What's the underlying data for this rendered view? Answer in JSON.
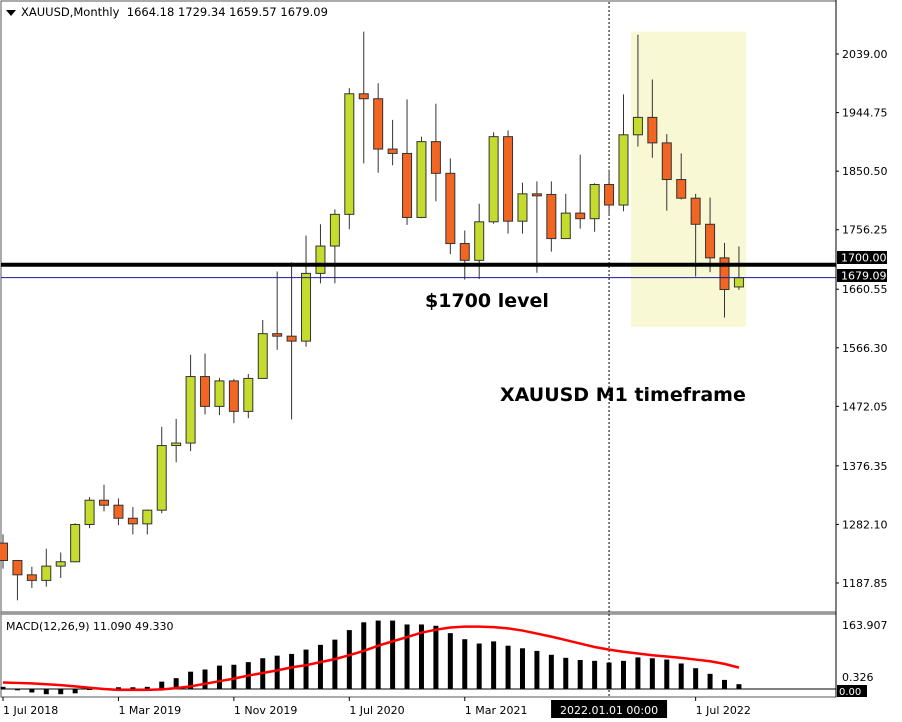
{
  "header": {
    "symbol_timeframe": "XAUUSD,Monthly",
    "ohlc": "1664.18 1729.34 1659.57 1679.09"
  },
  "annotations": {
    "level_text": "$1700 level",
    "timeframe_text": "XAUUSD M1 timeframe"
  },
  "colors": {
    "bull": "#c5dc2e",
    "bear": "#f26522",
    "level_line": "#000000",
    "bid_line": "#1a1aa6",
    "highlight": "#f8f8d4",
    "signal_line": "#ff0000",
    "histogram": "#000000"
  },
  "chart_data": [
    {
      "type": "candlestick",
      "title": "XAUUSD,Monthly",
      "x_start": "Jul 2018",
      "x_end": "Oct 2022",
      "ylim": [
        1130,
        2100
      ],
      "grid": false,
      "y_ticks": [
        "2039.00",
        "1944.75",
        "1850.50",
        "1756.25",
        "1660.55",
        "1566.30",
        "1472.05",
        "1376.35",
        "1282.10",
        "1187.85"
      ],
      "x_ticks": [
        "1 Jul 2018",
        "1 Mar 2019",
        "1 Nov 2019",
        "1 Jul 2020",
        "1 Mar 2021",
        "1 Jul 2022"
      ],
      "crosshair_label": "2022.01.01 00:00",
      "level_line": {
        "value": 1700.0,
        "label": "1700.00"
      },
      "bid_line": {
        "value": 1679.09,
        "label": "1679.09"
      },
      "highlight_range": {
        "from": "Mar 2022",
        "to": "Oct 2022",
        "low": 1600,
        "high": 2075
      },
      "ohlc": [
        [
          1252,
          1266,
          1211,
          1224
        ],
        [
          1224,
          1225,
          1160,
          1201
        ],
        [
          1201,
          1214,
          1180,
          1192
        ],
        [
          1192,
          1243,
          1182,
          1215
        ],
        [
          1215,
          1237,
          1196,
          1222
        ],
        [
          1222,
          1284,
          1221,
          1282
        ],
        [
          1282,
          1326,
          1276,
          1321
        ],
        [
          1321,
          1346,
          1303,
          1313
        ],
        [
          1313,
          1324,
          1281,
          1292
        ],
        [
          1292,
          1310,
          1266,
          1283
        ],
        [
          1283,
          1306,
          1266,
          1305
        ],
        [
          1305,
          1439,
          1300,
          1409
        ],
        [
          1409,
          1452,
          1382,
          1413
        ],
        [
          1413,
          1555,
          1400,
          1520
        ],
        [
          1520,
          1557,
          1459,
          1472
        ],
        [
          1472,
          1518,
          1458,
          1513
        ],
        [
          1513,
          1516,
          1445,
          1464
        ],
        [
          1464,
          1524,
          1453,
          1517
        ],
        [
          1517,
          1611,
          1517,
          1589
        ],
        [
          1589,
          1689,
          1563,
          1585
        ],
        [
          1585,
          1704,
          1451,
          1577
        ],
        [
          1577,
          1747,
          1568,
          1686
        ],
        [
          1686,
          1765,
          1670,
          1730
        ],
        [
          1730,
          1789,
          1670,
          1781
        ],
        [
          1781,
          1984,
          1757,
          1975
        ],
        [
          1975,
          2075,
          1863,
          1967
        ],
        [
          1967,
          1992,
          1848,
          1886
        ],
        [
          1886,
          1933,
          1860,
          1879
        ],
        [
          1879,
          1966,
          1764,
          1776
        ],
        [
          1776,
          1906,
          1775,
          1898
        ],
        [
          1898,
          1959,
          1802,
          1847
        ],
        [
          1847,
          1871,
          1717,
          1734
        ],
        [
          1734,
          1755,
          1676,
          1707
        ],
        [
          1707,
          1798,
          1677,
          1769
        ],
        [
          1769,
          1913,
          1766,
          1906
        ],
        [
          1906,
          1916,
          1750,
          1770
        ],
        [
          1770,
          1832,
          1750,
          1814
        ],
        [
          1814,
          1834,
          1687,
          1813
        ],
        [
          1813,
          1834,
          1721,
          1742
        ],
        [
          1742,
          1814,
          1746,
          1783
        ],
        [
          1783,
          1877,
          1758,
          1774
        ],
        [
          1774,
          1831,
          1753,
          1829
        ],
        [
          1829,
          1853,
          1780,
          1796
        ],
        [
          1796,
          1974,
          1786,
          1909
        ],
        [
          1909,
          2070,
          1890,
          1937
        ],
        [
          1937,
          1998,
          1872,
          1896
        ],
        [
          1896,
          1910,
          1787,
          1837
        ],
        [
          1837,
          1879,
          1805,
          1807
        ],
        [
          1807,
          1814,
          1681,
          1765
        ],
        [
          1765,
          1808,
          1688,
          1711
        ],
        [
          1711,
          1735,
          1615,
          1660
        ],
        [
          1664.18,
          1729.34,
          1659.57,
          1679.09
        ]
      ]
    },
    {
      "type": "bar+line",
      "title": "MACD(12,26,9) 11.090 49.330",
      "ylim": [
        -20,
        163.907
      ],
      "y_ticks": [
        "163.907"
      ],
      "zero_labels": [
        "0.00",
        "0.326"
      ],
      "series": [
        {
          "kind": "histogram",
          "values": [
            5,
            -3,
            -8,
            -12,
            -12,
            -10,
            -1,
            2,
            4,
            4,
            5,
            17,
            25,
            40,
            45,
            54,
            56,
            62,
            71,
            77,
            81,
            91,
            102,
            114,
            136,
            154,
            158,
            158,
            149,
            149,
            146,
            129,
            115,
            105,
            110,
            100,
            94,
            88,
            79,
            72,
            67,
            65,
            61,
            65,
            73,
            71,
            68,
            59,
            48,
            35,
            21,
            11.09
          ]
        },
        {
          "kind": "signal",
          "values": [
            15,
            14,
            13,
            11,
            9,
            6,
            3,
            0,
            -2,
            -2,
            -2,
            -1,
            2,
            6,
            12,
            18,
            24,
            31,
            37,
            43,
            50,
            55,
            62,
            69,
            78,
            88,
            100,
            110,
            120,
            130,
            137,
            142,
            144,
            144,
            143,
            140,
            135,
            128,
            121,
            113,
            105,
            97,
            91,
            86,
            82,
            78,
            75,
            72,
            68,
            64,
            58,
            49.33
          ]
        }
      ]
    }
  ]
}
